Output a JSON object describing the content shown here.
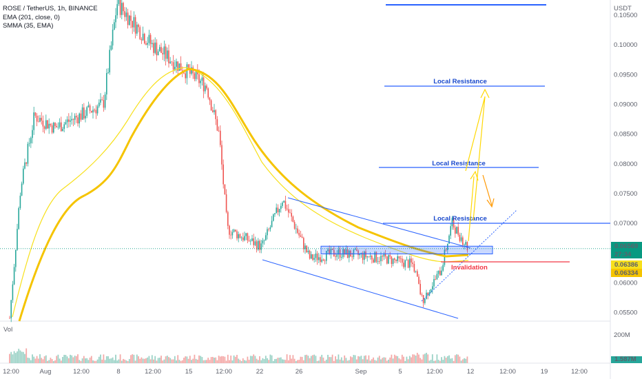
{
  "legend": {
    "title": "ROSE / TetherUS, 1h, BINANCE",
    "ema": "EMA (201, close, 0)",
    "smma": "SMMA (35, EMA)"
  },
  "volume_label": "Vol",
  "price_axis": {
    "currency": "USDT",
    "ticks": [
      "0.10500",
      "0.10000",
      "0.09500",
      "0.09000",
      "0.08500",
      "0.08000",
      "0.07500",
      "0.07000",
      "0.06500",
      "0.06000",
      "0.05500"
    ],
    "tick_values": [
      0.105,
      0.1,
      0.095,
      0.09,
      0.085,
      0.08,
      0.075,
      0.07,
      0.065,
      0.06,
      0.055
    ],
    "range": [
      0.0535,
      0.1075
    ]
  },
  "volume_axis": {
    "ticks": [
      "200M"
    ],
    "last_badge": "1.587M"
  },
  "time_axis": [
    "12:00",
    "Aug",
    "12:00",
    "8",
    "12:00",
    "15",
    "12:00",
    "22",
    "26",
    "Sep",
    "5",
    "12:00",
    "12",
    "12:00",
    "19",
    "12:00"
  ],
  "price_badges": {
    "last_price": "0.06569",
    "countdown": "27:34",
    "ema_value": "0.06386",
    "smma_value": "0.06334"
  },
  "annotations": {
    "r1": "Local Resistance",
    "r2": "Local Resistance",
    "r3": "Local Resistance",
    "invalidation": "Invalidation"
  },
  "colors": {
    "up": "#26a69a",
    "down": "#ef5350",
    "ema": "#f7e01c",
    "smma": "#f5c400",
    "resistance": "#2962ff",
    "invalidation": "#f23645",
    "arrow_up": "#ffd700",
    "arrow_down": "#ff9800",
    "last_price": "#089981"
  },
  "chart_data": {
    "type": "candlestick",
    "title": "ROSE / TetherUS, 1h, BINANCE",
    "series_close_anchors": [
      {
        "x": "Jul 29 00:00",
        "y": 0.054
      },
      {
        "x": "Jul 31",
        "y": 0.076
      },
      {
        "x": "Aug 2",
        "y": 0.088
      },
      {
        "x": "Aug 5",
        "y": 0.086
      },
      {
        "x": "Aug 7",
        "y": 0.09
      },
      {
        "x": "Aug 8",
        "y": 0.107
      },
      {
        "x": "Aug 11",
        "y": 0.1
      },
      {
        "x": "Aug 14",
        "y": 0.096
      },
      {
        "x": "Aug 16",
        "y": 0.093
      },
      {
        "x": "Aug 19",
        "y": 0.085
      },
      {
        "x": "Aug 21",
        "y": 0.069
      },
      {
        "x": "Aug 22",
        "y": 0.066
      },
      {
        "x": "Aug 24",
        "y": 0.074
      },
      {
        "x": "Aug 26",
        "y": 0.064
      },
      {
        "x": "Aug 29",
        "y": 0.065
      },
      {
        "x": "Sep 2",
        "y": 0.064
      },
      {
        "x": "Sep 5",
        "y": 0.063
      },
      {
        "x": "Sep 7",
        "y": 0.057
      },
      {
        "x": "Sep 9",
        "y": 0.062
      },
      {
        "x": "Sep 10",
        "y": 0.07
      },
      {
        "x": "Sep 11 12:00",
        "y": 0.0657
      }
    ],
    "resistance_levels": [
      0.0935,
      0.0795,
      0.07
    ],
    "invalidation_level": 0.0629,
    "support_zone": [
      0.0648,
      0.0661
    ],
    "last_price": 0.06569
  }
}
